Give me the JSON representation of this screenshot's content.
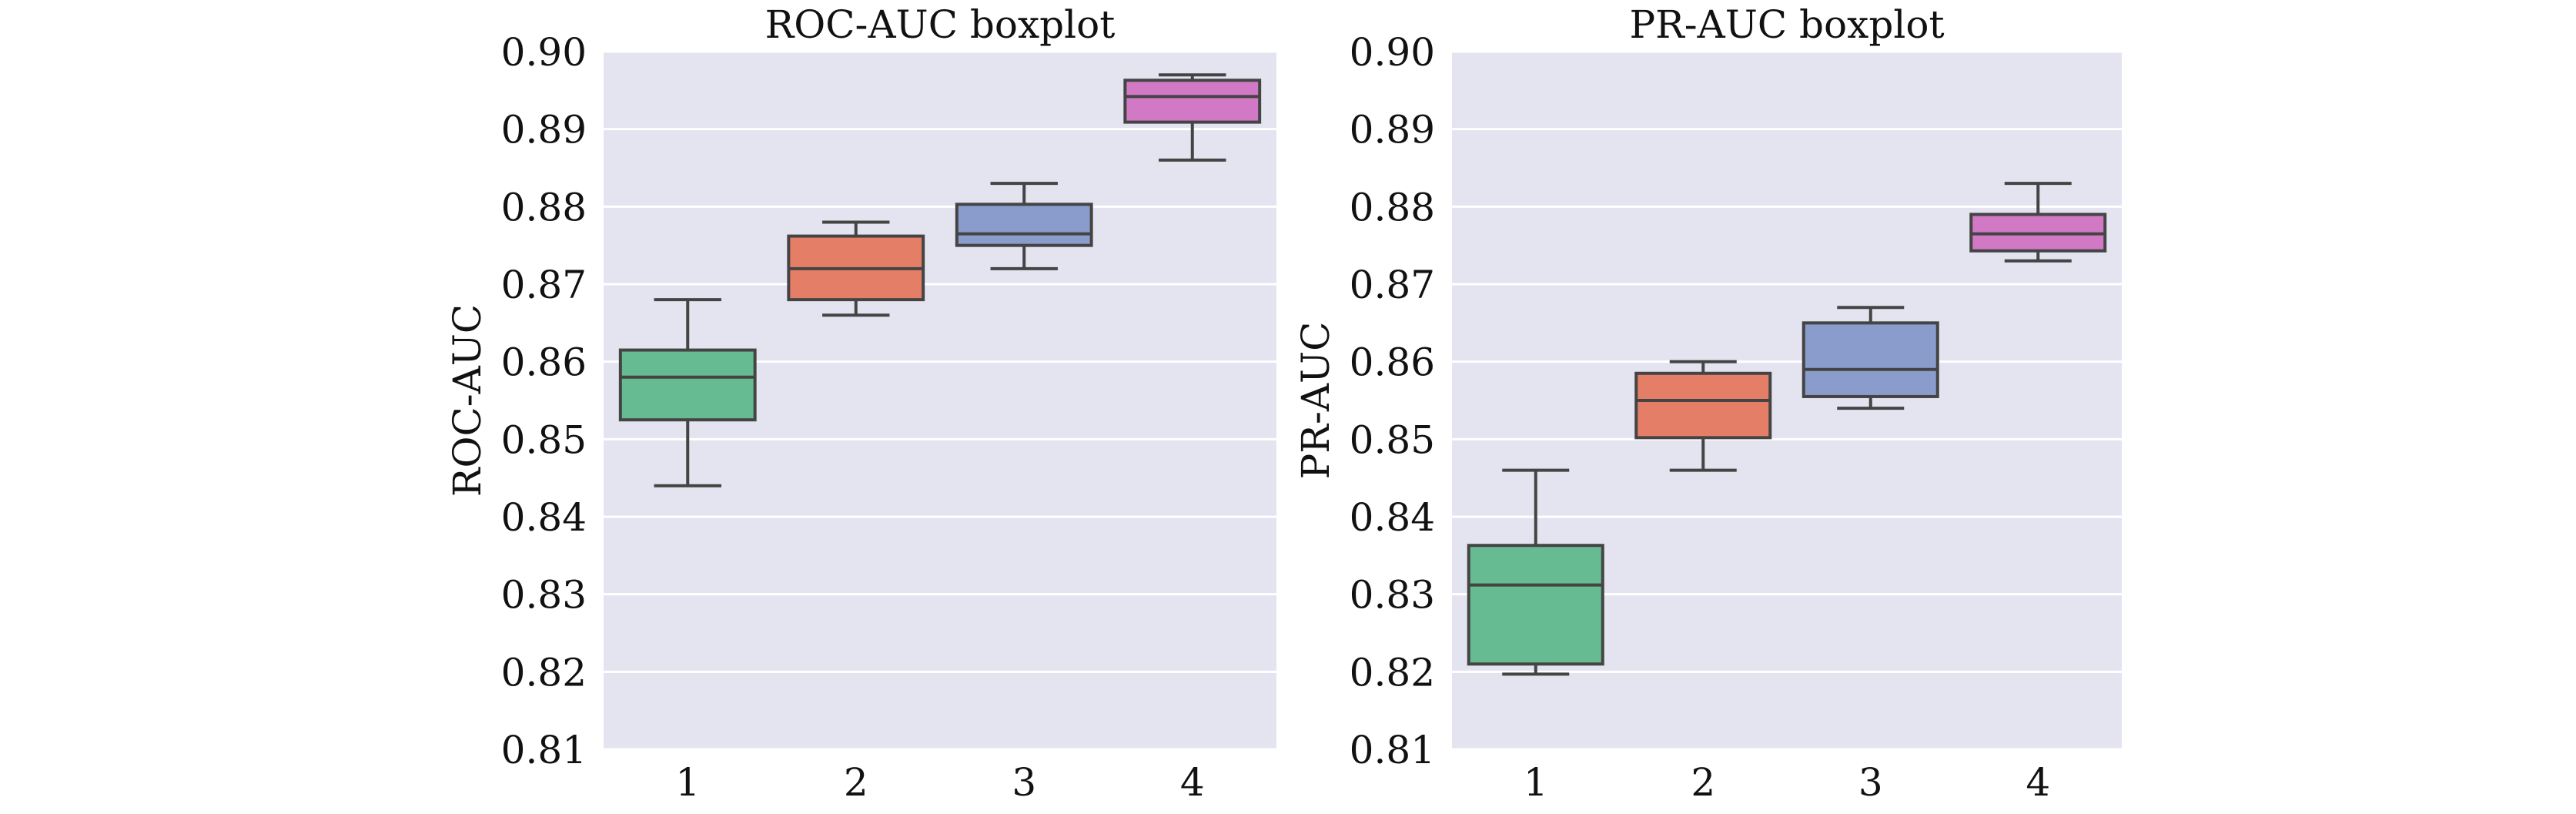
{
  "colors": {
    "plot_background": "#e4e3f0",
    "grid": "#ffffff",
    "box_outline": "#444444",
    "series_colors": [
      "#66bb92",
      "#e57e67",
      "#8a9ccc",
      "#d179c4"
    ]
  },
  "chart_data": [
    {
      "type": "boxplot",
      "title": "ROC-AUC boxplot",
      "xlabel": "",
      "ylabel": "ROC-AUC",
      "ylim": [
        0.81,
        0.9
      ],
      "yticks": [
        "0.81",
        "0.82",
        "0.83",
        "0.84",
        "0.85",
        "0.86",
        "0.87",
        "0.88",
        "0.89",
        "0.90"
      ],
      "ytick_values": [
        0.81,
        0.82,
        0.83,
        0.84,
        0.85,
        0.86,
        0.87,
        0.88,
        0.89,
        0.9
      ],
      "grid": true,
      "categories": [
        "1",
        "2",
        "3",
        "4"
      ],
      "boxes": [
        {
          "whisker_low": 0.844,
          "q1": 0.8525,
          "median": 0.858,
          "q3": 0.8615,
          "whisker_high": 0.868
        },
        {
          "whisker_low": 0.866,
          "q1": 0.868,
          "median": 0.872,
          "q3": 0.8762,
          "whisker_high": 0.878
        },
        {
          "whisker_low": 0.872,
          "q1": 0.875,
          "median": 0.8765,
          "q3": 0.8803,
          "whisker_high": 0.883
        },
        {
          "whisker_low": 0.886,
          "q1": 0.8909,
          "median": 0.8942,
          "q3": 0.8963,
          "whisker_high": 0.897
        }
      ]
    },
    {
      "type": "boxplot",
      "title": "PR-AUC boxplot",
      "xlabel": "",
      "ylabel": "PR-AUC",
      "ylim": [
        0.81,
        0.9
      ],
      "yticks": [
        "0.81",
        "0.82",
        "0.83",
        "0.84",
        "0.85",
        "0.86",
        "0.87",
        "0.88",
        "0.89",
        "0.90"
      ],
      "ytick_values": [
        0.81,
        0.82,
        0.83,
        0.84,
        0.85,
        0.86,
        0.87,
        0.88,
        0.89,
        0.9
      ],
      "grid": true,
      "categories": [
        "1",
        "2",
        "3",
        "4"
      ],
      "boxes": [
        {
          "whisker_low": 0.8197,
          "q1": 0.821,
          "median": 0.8312,
          "q3": 0.8363,
          "whisker_high": 0.846
        },
        {
          "whisker_low": 0.846,
          "q1": 0.8502,
          "median": 0.855,
          "q3": 0.8585,
          "whisker_high": 0.86
        },
        {
          "whisker_low": 0.854,
          "q1": 0.8555,
          "median": 0.859,
          "q3": 0.865,
          "whisker_high": 0.867
        },
        {
          "whisker_low": 0.873,
          "q1": 0.8743,
          "median": 0.8765,
          "q3": 0.879,
          "whisker_high": 0.883
        }
      ]
    }
  ]
}
